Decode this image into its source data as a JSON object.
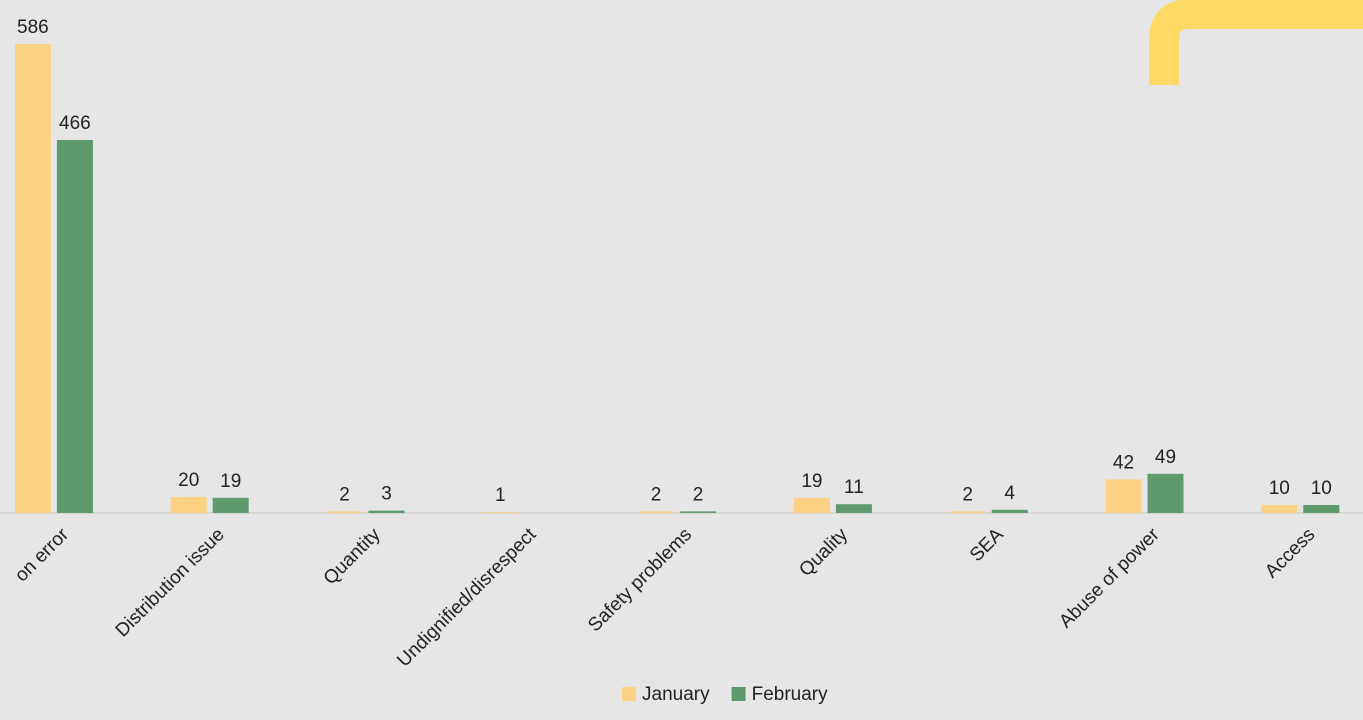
{
  "chart_data": {
    "type": "bar",
    "categories": [
      "on error",
      "Distribution issue",
      "Quantity",
      "Undignified/disrespect",
      "Safety problems",
      "Quality",
      "SEA",
      "Abuse of power",
      "Access"
    ],
    "series": [
      {
        "name": "January",
        "color": "#fdd283",
        "values": [
          586,
          20,
          2,
          1,
          2,
          19,
          2,
          42,
          10
        ]
      },
      {
        "name": "February",
        "color": "#5f9a6c",
        "values": [
          466,
          19,
          3,
          null,
          2,
          11,
          4,
          49,
          10
        ]
      }
    ],
    "ylim": [
      0,
      586
    ],
    "legend": "bottom"
  }
}
